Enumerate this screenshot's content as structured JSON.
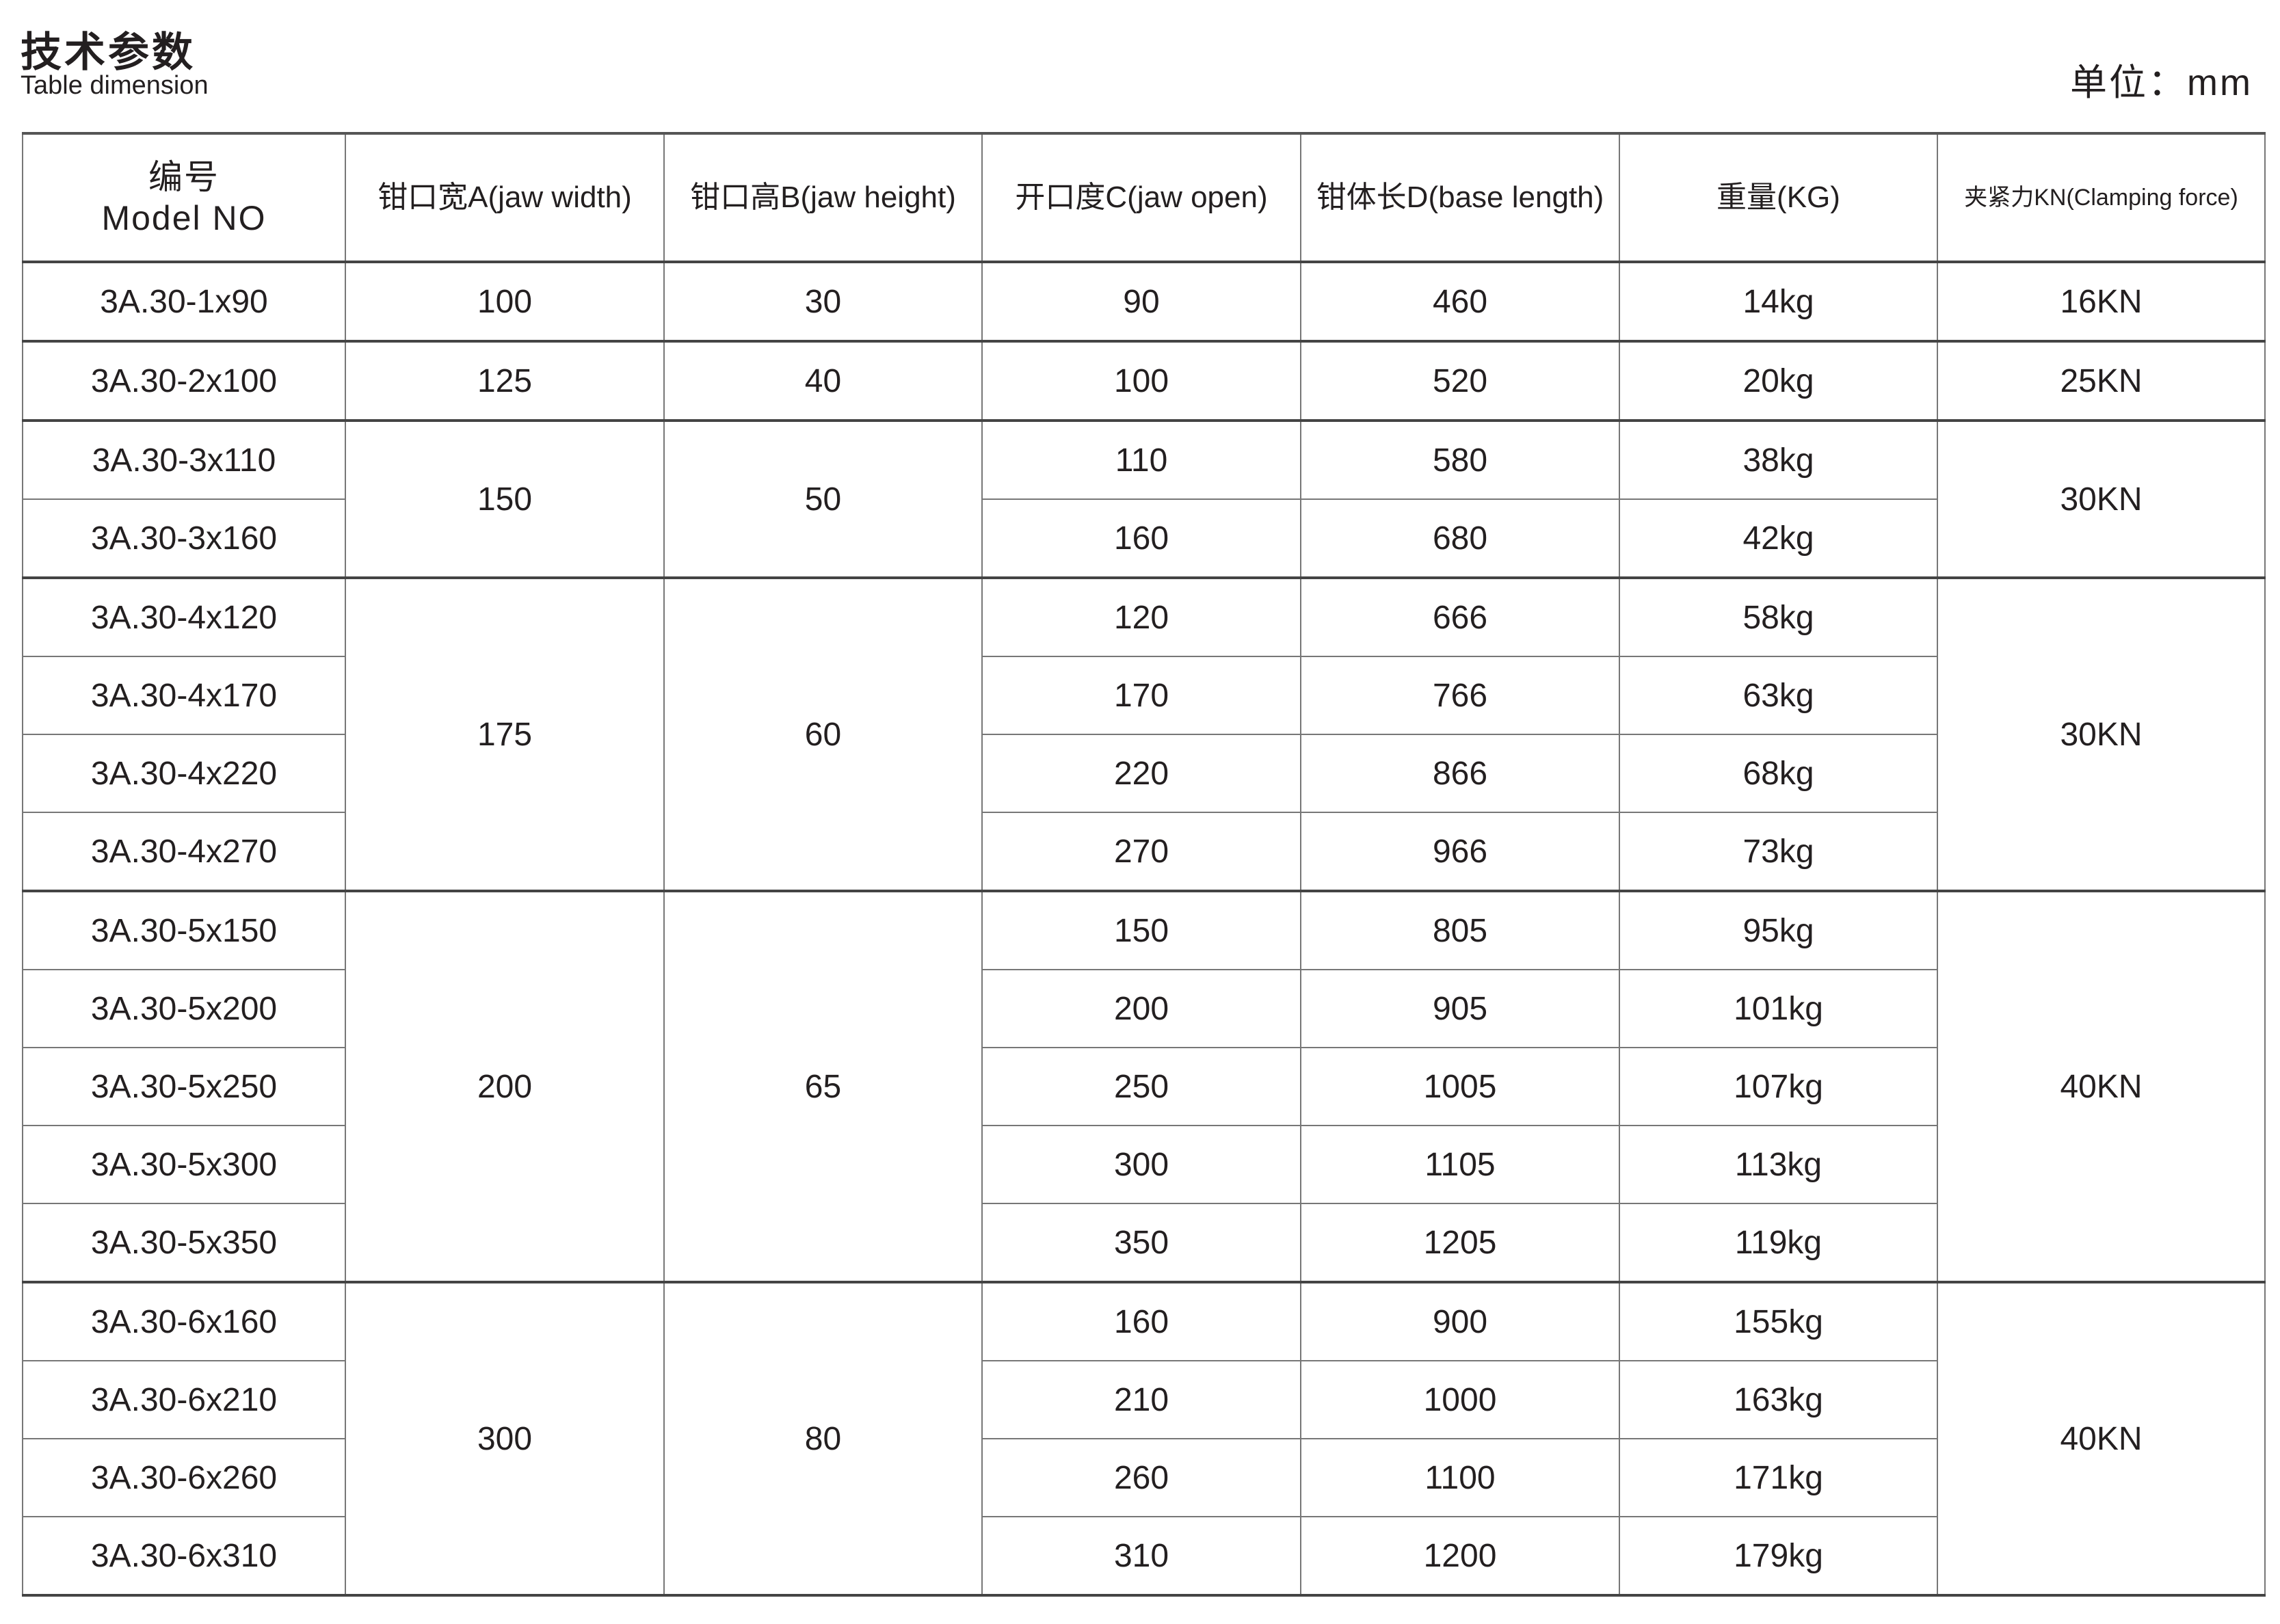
{
  "title": "技术参数",
  "subtitle": "Table dimension",
  "unit": "单位：mm",
  "headers": {
    "model_cn": "编号",
    "model_en": "Model NO",
    "jaw_width": "钳口宽A(jaw width)",
    "jaw_height": "钳口高B(jaw height)",
    "jaw_open": "开口度C(jaw open)",
    "base_length": "钳体长D(base length)",
    "weight": "重量(KG)",
    "clamping": "夹紧力KN(Clamping force)"
  },
  "groups": [
    {
      "jaw_width": "100",
      "jaw_height": "30",
      "clamping": "16KN",
      "rows": [
        {
          "model": "3A.30-1x90",
          "open": "90",
          "length": "460",
          "weight": "14kg"
        }
      ]
    },
    {
      "jaw_width": "125",
      "jaw_height": "40",
      "clamping": "25KN",
      "rows": [
        {
          "model": "3A.30-2x100",
          "open": "100",
          "length": "520",
          "weight": "20kg"
        }
      ]
    },
    {
      "jaw_width": "150",
      "jaw_height": "50",
      "clamping": "30KN",
      "rows": [
        {
          "model": "3A.30-3x110",
          "open": "110",
          "length": "580",
          "weight": "38kg"
        },
        {
          "model": "3A.30-3x160",
          "open": "160",
          "length": "680",
          "weight": "42kg"
        }
      ]
    },
    {
      "jaw_width": "175",
      "jaw_height": "60",
      "clamping": "30KN",
      "rows": [
        {
          "model": "3A.30-4x120",
          "open": "120",
          "length": "666",
          "weight": "58kg"
        },
        {
          "model": "3A.30-4x170",
          "open": "170",
          "length": "766",
          "weight": "63kg"
        },
        {
          "model": "3A.30-4x220",
          "open": "220",
          "length": "866",
          "weight": "68kg"
        },
        {
          "model": "3A.30-4x270",
          "open": "270",
          "length": "966",
          "weight": "73kg"
        }
      ]
    },
    {
      "jaw_width": "200",
      "jaw_height": "65",
      "clamping": "40KN",
      "rows": [
        {
          "model": "3A.30-5x150",
          "open": "150",
          "length": "805",
          "weight": "95kg"
        },
        {
          "model": "3A.30-5x200",
          "open": "200",
          "length": "905",
          "weight": "101kg"
        },
        {
          "model": "3A.30-5x250",
          "open": "250",
          "length": "1005",
          "weight": "107kg"
        },
        {
          "model": "3A.30-5x300",
          "open": "300",
          "length": "1105",
          "weight": "113kg"
        },
        {
          "model": "3A.30-5x350",
          "open": "350",
          "length": "1205",
          "weight": "119kg"
        }
      ]
    },
    {
      "jaw_width": "300",
      "jaw_height": "80",
      "clamping": "40KN",
      "rows": [
        {
          "model": "3A.30-6x160",
          "open": "160",
          "length": "900",
          "weight": "155kg"
        },
        {
          "model": "3A.30-6x210",
          "open": "210",
          "length": "1000",
          "weight": "163kg"
        },
        {
          "model": "3A.30-6x260",
          "open": "260",
          "length": "1100",
          "weight": "171kg"
        },
        {
          "model": "3A.30-6x310",
          "open": "310",
          "length": "1200",
          "weight": "179kg"
        }
      ]
    }
  ]
}
